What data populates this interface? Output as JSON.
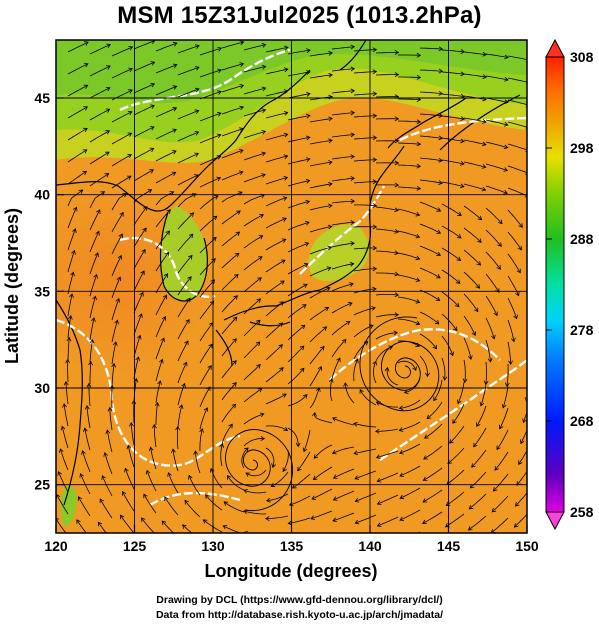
{
  "title": "MSM 15Z31Jul2025 (1013.2hPa)",
  "map": {
    "xlabel": "Longitude (degrees)",
    "ylabel": "Latitude  (degrees)",
    "lon_range": [
      120,
      150
    ],
    "lat_range": [
      22.5,
      48
    ],
    "lon_ticks": [
      120,
      125,
      130,
      135,
      140,
      145,
      150
    ],
    "lat_ticks": [
      25,
      30,
      35,
      40,
      45
    ],
    "field": "temperature",
    "contour_color": "#ffffff",
    "streamline_color": "#000000",
    "features": [
      {
        "name": "typhoon-vortex",
        "lon": 141.0,
        "lat": 31.8
      },
      {
        "name": "low-circulation",
        "lon": 133.0,
        "lat": 26.3
      }
    ]
  },
  "colorbar": {
    "min": 258,
    "max": 308,
    "labels": [
      "308",
      "298",
      "288",
      "278",
      "268",
      "258"
    ],
    "label_values": [
      308,
      298,
      288,
      278,
      268,
      258
    ]
  },
  "footer": {
    "line1": "Drawing by DCL (https://www.gfd-dennou.org/library/dcl/)",
    "line2": "Data from http://database.rish.kyoto-u.ac.jp/arch/jmadata/"
  }
}
